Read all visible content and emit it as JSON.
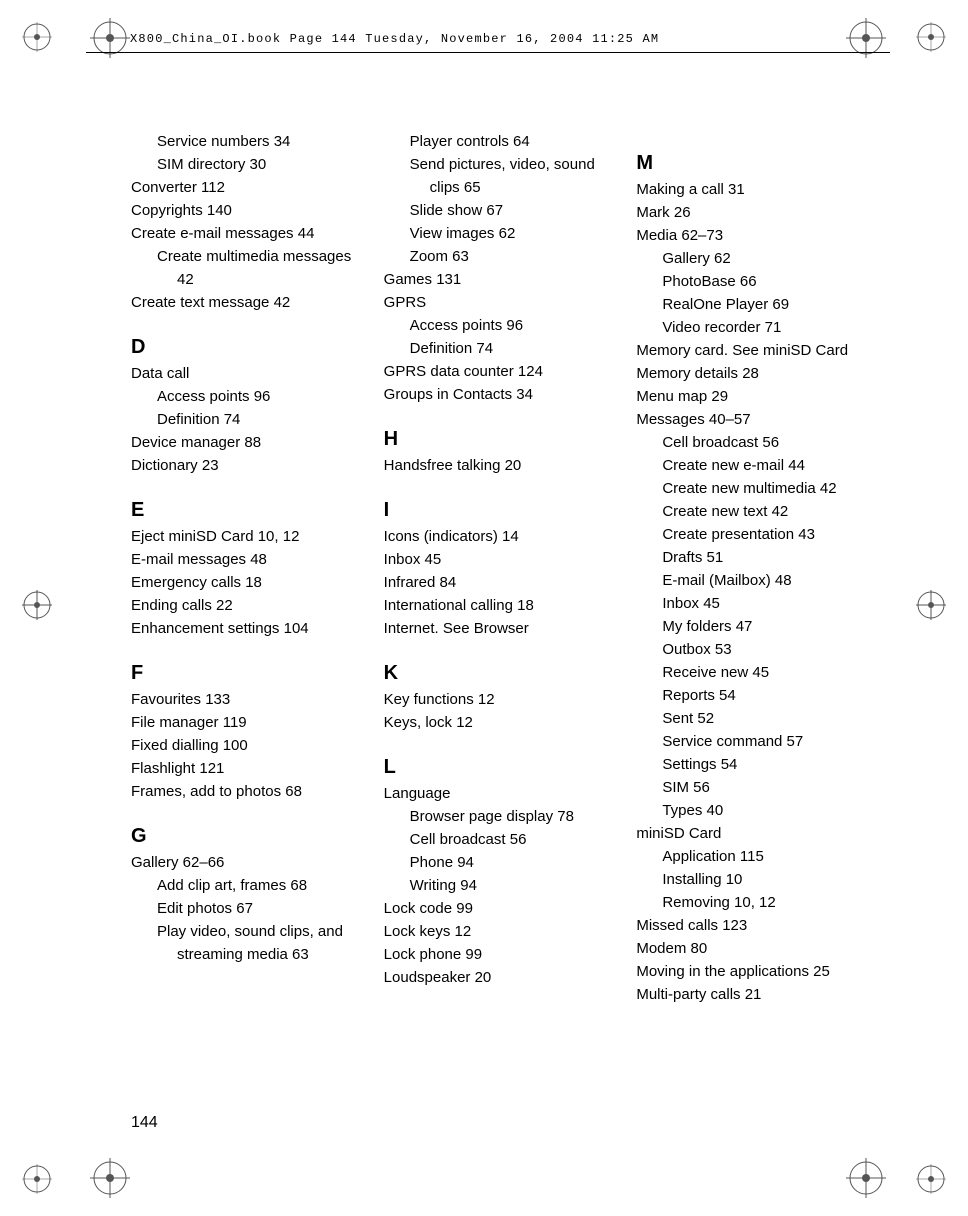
{
  "header_text": "X800_China_OI.book  Page 144  Tuesday, November 16, 2004   11:25 AM",
  "page_number": "144",
  "col1": {
    "pre": [
      {
        "t": "Service numbers",
        "p": "34",
        "lvl": 1
      },
      {
        "t": "SIM directory",
        "p": "30",
        "lvl": 1
      },
      {
        "t": "Converter",
        "p": "112",
        "lvl": 0
      },
      {
        "t": "Copyrights",
        "p": "140",
        "lvl": 0
      },
      {
        "t": "Create e-mail messages",
        "p": "44",
        "lvl": 0
      },
      {
        "t": "Create multimedia messages",
        "p": "42",
        "lvl": 0,
        "hang": true
      },
      {
        "t": "Create text message",
        "p": "42",
        "lvl": 0
      }
    ],
    "D": [
      {
        "t": "Data call",
        "p": "",
        "lvl": 0
      },
      {
        "t": "Access points",
        "p": "96",
        "lvl": 1
      },
      {
        "t": "Definition",
        "p": "74",
        "lvl": 1
      },
      {
        "t": "Device manager",
        "p": "88",
        "lvl": 0
      },
      {
        "t": "Dictionary",
        "p": "23",
        "lvl": 0
      }
    ],
    "E": [
      {
        "t": "Eject miniSD Card",
        "p": "10, 12",
        "lvl": 0
      },
      {
        "t": "E-mail messages",
        "p": "48",
        "lvl": 0
      },
      {
        "t": "Emergency calls",
        "p": "18",
        "lvl": 0
      },
      {
        "t": "Ending calls",
        "p": "22",
        "lvl": 0
      },
      {
        "t": "Enhancement settings",
        "p": "104",
        "lvl": 0
      }
    ],
    "F": [
      {
        "t": "Favourites",
        "p": "133",
        "lvl": 0
      },
      {
        "t": "File manager",
        "p": "119",
        "lvl": 0
      },
      {
        "t": "Fixed dialling",
        "p": "100",
        "lvl": 0
      },
      {
        "t": "Flashlight",
        "p": "121",
        "lvl": 0
      },
      {
        "t": "Frames, add to photos",
        "p": "68",
        "lvl": 0
      }
    ],
    "G": [
      {
        "t": "Gallery",
        "p": "62–66",
        "lvl": 0
      },
      {
        "t": "Add clip art, frames",
        "p": "68",
        "lvl": 1
      },
      {
        "t": "Edit photos",
        "p": "67",
        "lvl": 1
      },
      {
        "t": "Play video, sound clips, and streaming media",
        "p": "63",
        "lvl": 1,
        "hang": true
      }
    ]
  },
  "col2": {
    "pre": [
      {
        "t": "Player controls",
        "p": "64",
        "lvl": 1
      },
      {
        "t": "Send pictures, video, sound clips",
        "p": "65",
        "lvl": 1,
        "hang": true
      },
      {
        "t": "Slide show",
        "p": "67",
        "lvl": 1
      },
      {
        "t": "View images",
        "p": "62",
        "lvl": 1
      },
      {
        "t": "Zoom",
        "p": "63",
        "lvl": 1
      },
      {
        "t": "Games",
        "p": "131",
        "lvl": 0
      },
      {
        "t": "GPRS",
        "p": "",
        "lvl": 0
      },
      {
        "t": "Access points",
        "p": "96",
        "lvl": 1
      },
      {
        "t": "Definition",
        "p": "74",
        "lvl": 1
      },
      {
        "t": "GPRS data counter",
        "p": "124",
        "lvl": 0
      },
      {
        "t": "Groups in Contacts",
        "p": "34",
        "lvl": 0
      }
    ],
    "H": [
      {
        "t": "Handsfree talking",
        "p": "20",
        "lvl": 0
      }
    ],
    "I": [
      {
        "t": "Icons (indicators)",
        "p": "14",
        "lvl": 0
      },
      {
        "t": "Inbox",
        "p": "45",
        "lvl": 0
      },
      {
        "t": "Infrared",
        "p": "84",
        "lvl": 0
      },
      {
        "t": "International calling",
        "p": "18",
        "lvl": 0
      },
      {
        "t": "Internet. See Browser",
        "p": "",
        "lvl": 0
      }
    ],
    "K": [
      {
        "t": "Key functions",
        "p": "12",
        "lvl": 0
      },
      {
        "t": "Keys, lock",
        "p": "12",
        "lvl": 0
      }
    ],
    "L": [
      {
        "t": "Language",
        "p": "",
        "lvl": 0
      },
      {
        "t": "Browser page display",
        "p": "78",
        "lvl": 1
      },
      {
        "t": "Cell broadcast",
        "p": "56",
        "lvl": 1
      },
      {
        "t": "Phone",
        "p": "94",
        "lvl": 1
      },
      {
        "t": "Writing",
        "p": "94",
        "lvl": 1
      },
      {
        "t": "Lock code",
        "p": "99",
        "lvl": 0
      },
      {
        "t": "Lock keys",
        "p": "12",
        "lvl": 0
      },
      {
        "t": "Lock phone",
        "p": "99",
        "lvl": 0
      },
      {
        "t": "Loudspeaker",
        "p": "20",
        "lvl": 0
      }
    ]
  },
  "col3": {
    "M": [
      {
        "t": "Making a call",
        "p": "31",
        "lvl": 0
      },
      {
        "t": "Mark",
        "p": "26",
        "lvl": 0
      },
      {
        "t": "Media",
        "p": "62–73",
        "lvl": 0
      },
      {
        "t": "Gallery",
        "p": "62",
        "lvl": 1
      },
      {
        "t": "PhotoBase",
        "p": "66",
        "lvl": 1
      },
      {
        "t": "RealOne Player",
        "p": "69",
        "lvl": 1
      },
      {
        "t": "Video recorder",
        "p": "71",
        "lvl": 1
      },
      {
        "t": "Memory card. See miniSD Card",
        "p": "",
        "lvl": 0,
        "hang0": true
      },
      {
        "t": "Memory details",
        "p": "28",
        "lvl": 0
      },
      {
        "t": "Menu map",
        "p": "29",
        "lvl": 0
      },
      {
        "t": "Messages",
        "p": "40–57",
        "lvl": 0
      },
      {
        "t": "Cell broadcast",
        "p": "56",
        "lvl": 1
      },
      {
        "t": "Create new e-mail",
        "p": "44",
        "lvl": 1
      },
      {
        "t": "Create new multimedia",
        "p": "42",
        "lvl": 1,
        "hang": true
      },
      {
        "t": "Create new text",
        "p": "42",
        "lvl": 1
      },
      {
        "t": "Create presentation",
        "p": "43",
        "lvl": 1
      },
      {
        "t": "Drafts",
        "p": "51",
        "lvl": 1
      },
      {
        "t": "E-mail (Mailbox)",
        "p": "48",
        "lvl": 1
      },
      {
        "t": "Inbox",
        "p": "45",
        "lvl": 1
      },
      {
        "t": "My folders",
        "p": "47",
        "lvl": 1
      },
      {
        "t": "Outbox",
        "p": "53",
        "lvl": 1
      },
      {
        "t": "Receive new",
        "p": "45",
        "lvl": 1
      },
      {
        "t": "Reports",
        "p": "54",
        "lvl": 1
      },
      {
        "t": "Sent",
        "p": "52",
        "lvl": 1
      },
      {
        "t": "Service command",
        "p": "57",
        "lvl": 1
      },
      {
        "t": "Settings",
        "p": "54",
        "lvl": 1
      },
      {
        "t": "SIM",
        "p": "56",
        "lvl": 1
      },
      {
        "t": "Types",
        "p": "40",
        "lvl": 1
      },
      {
        "t": "miniSD Card",
        "p": "",
        "lvl": 0
      },
      {
        "t": "Application",
        "p": "115",
        "lvl": 1
      },
      {
        "t": "Installing",
        "p": "10",
        "lvl": 1
      },
      {
        "t": "Removing",
        "p": "10, 12",
        "lvl": 1
      },
      {
        "t": "Missed calls",
        "p": "123",
        "lvl": 0
      },
      {
        "t": "Modem",
        "p": "80",
        "lvl": 0
      },
      {
        "t": "Moving in the applications",
        "p": "25",
        "lvl": 0,
        "hang0": true
      },
      {
        "t": "Multi-party calls",
        "p": "21",
        "lvl": 0
      }
    ]
  }
}
